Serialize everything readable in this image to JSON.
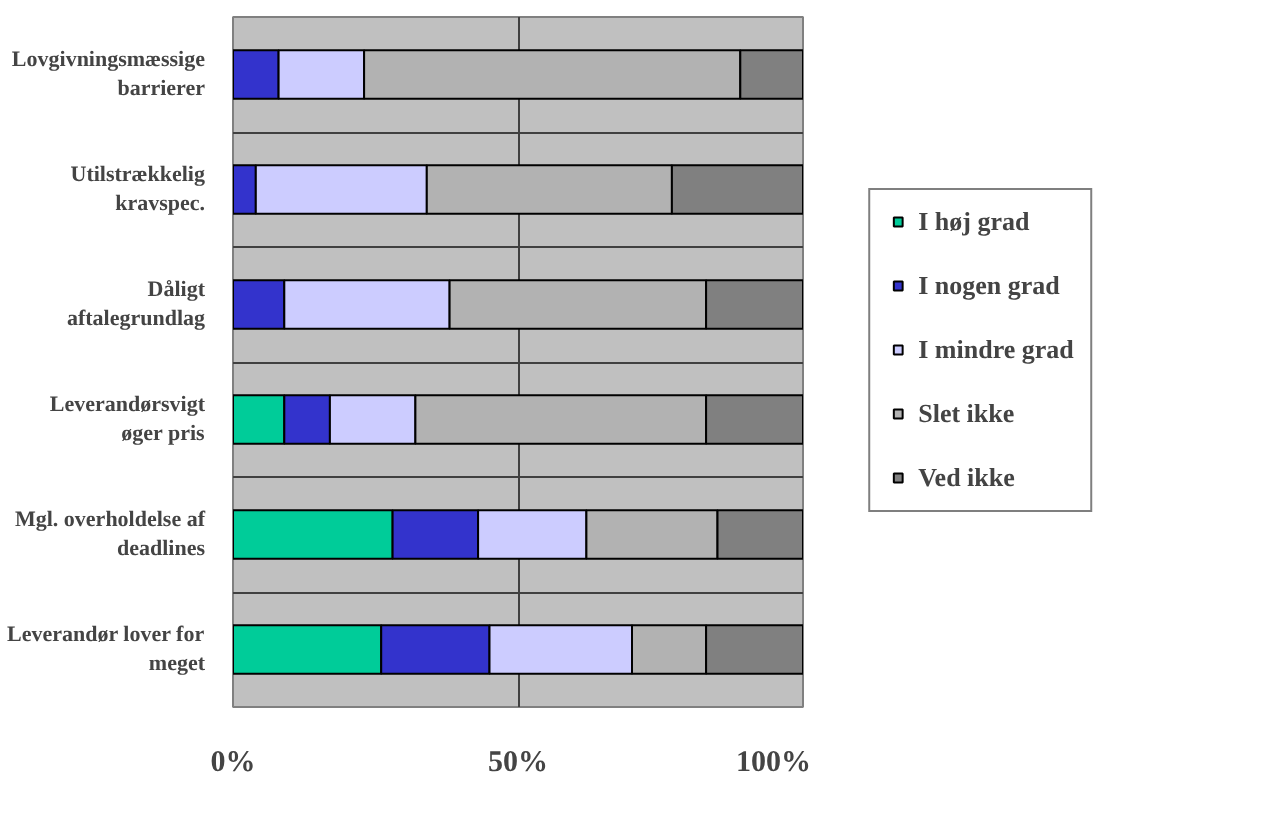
{
  "chart_data": {
    "type": "bar",
    "orientation": "horizontal",
    "stacked": true,
    "categories": [
      "Lovgivningsmæssige\nbarrierer",
      "Utilstrækkelig\nkravspec.",
      "Dåligt\naftalegrundlag",
      "Leverandørsvigt\nøger pris",
      "Mgl. overholdelse af\ndeadlines",
      "Leverandør lover for\nmeget"
    ],
    "series": [
      {
        "name": "I høj grad",
        "color": "#00cc99",
        "values": [
          0,
          0,
          0,
          9,
          28,
          26
        ]
      },
      {
        "name": "I nogen grad",
        "color": "#3333cc",
        "values": [
          8,
          4,
          9,
          8,
          15,
          19
        ]
      },
      {
        "name": "I mindre grad",
        "color": "#ccccff",
        "values": [
          15,
          30,
          29,
          15,
          19,
          25
        ]
      },
      {
        "name": "Slet ikke",
        "color": "#b2b2b2",
        "values": [
          66,
          43,
          45,
          51,
          23,
          13
        ]
      },
      {
        "name": "Ved ikke",
        "color": "#808080",
        "values": [
          11,
          23,
          17,
          17,
          15,
          17
        ]
      }
    ],
    "xlim": [
      0,
      100
    ],
    "xticks": [
      {
        "value": 0,
        "label": "0%"
      },
      {
        "value": 50,
        "label": "50%"
      },
      {
        "value": 100,
        "label": "100%"
      }
    ],
    "grid": true,
    "legend": "right"
  }
}
